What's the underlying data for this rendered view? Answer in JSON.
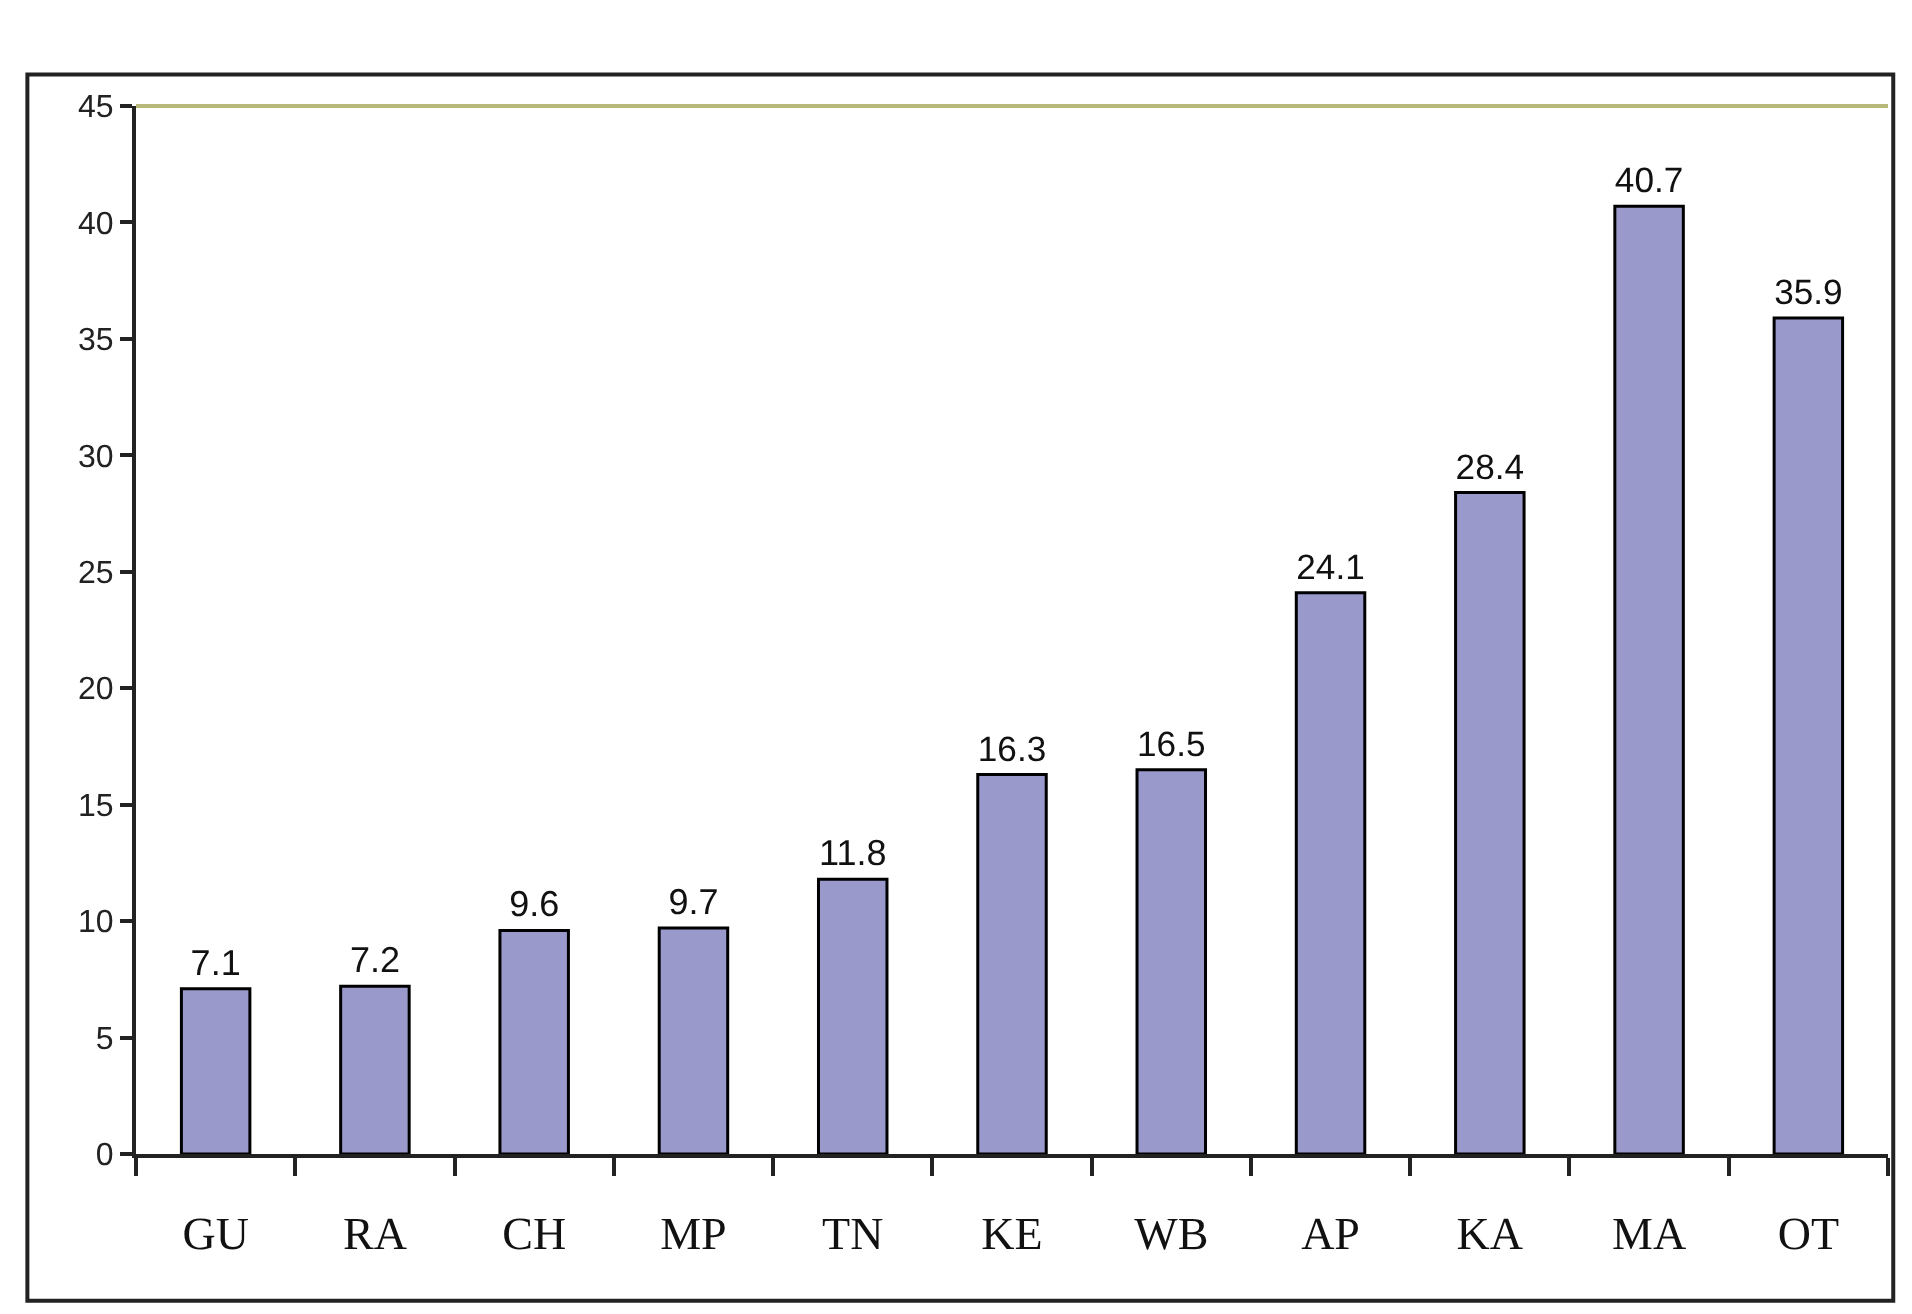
{
  "chart_data": {
    "type": "bar",
    "categories": [
      "GU",
      "RA",
      "CH",
      "MP",
      "TN",
      "KE",
      "WB",
      "AP",
      "KA",
      "MA",
      "OT"
    ],
    "values": [
      7.1,
      7.2,
      9.6,
      9.7,
      11.8,
      16.3,
      16.5,
      24.1,
      28.4,
      40.7,
      35.9
    ],
    "color": "#9999cc",
    "ylim": [
      0,
      45
    ],
    "yticks": [
      0,
      5,
      10,
      15,
      20,
      25,
      30,
      35,
      40,
      45
    ],
    "data_labels": true
  }
}
